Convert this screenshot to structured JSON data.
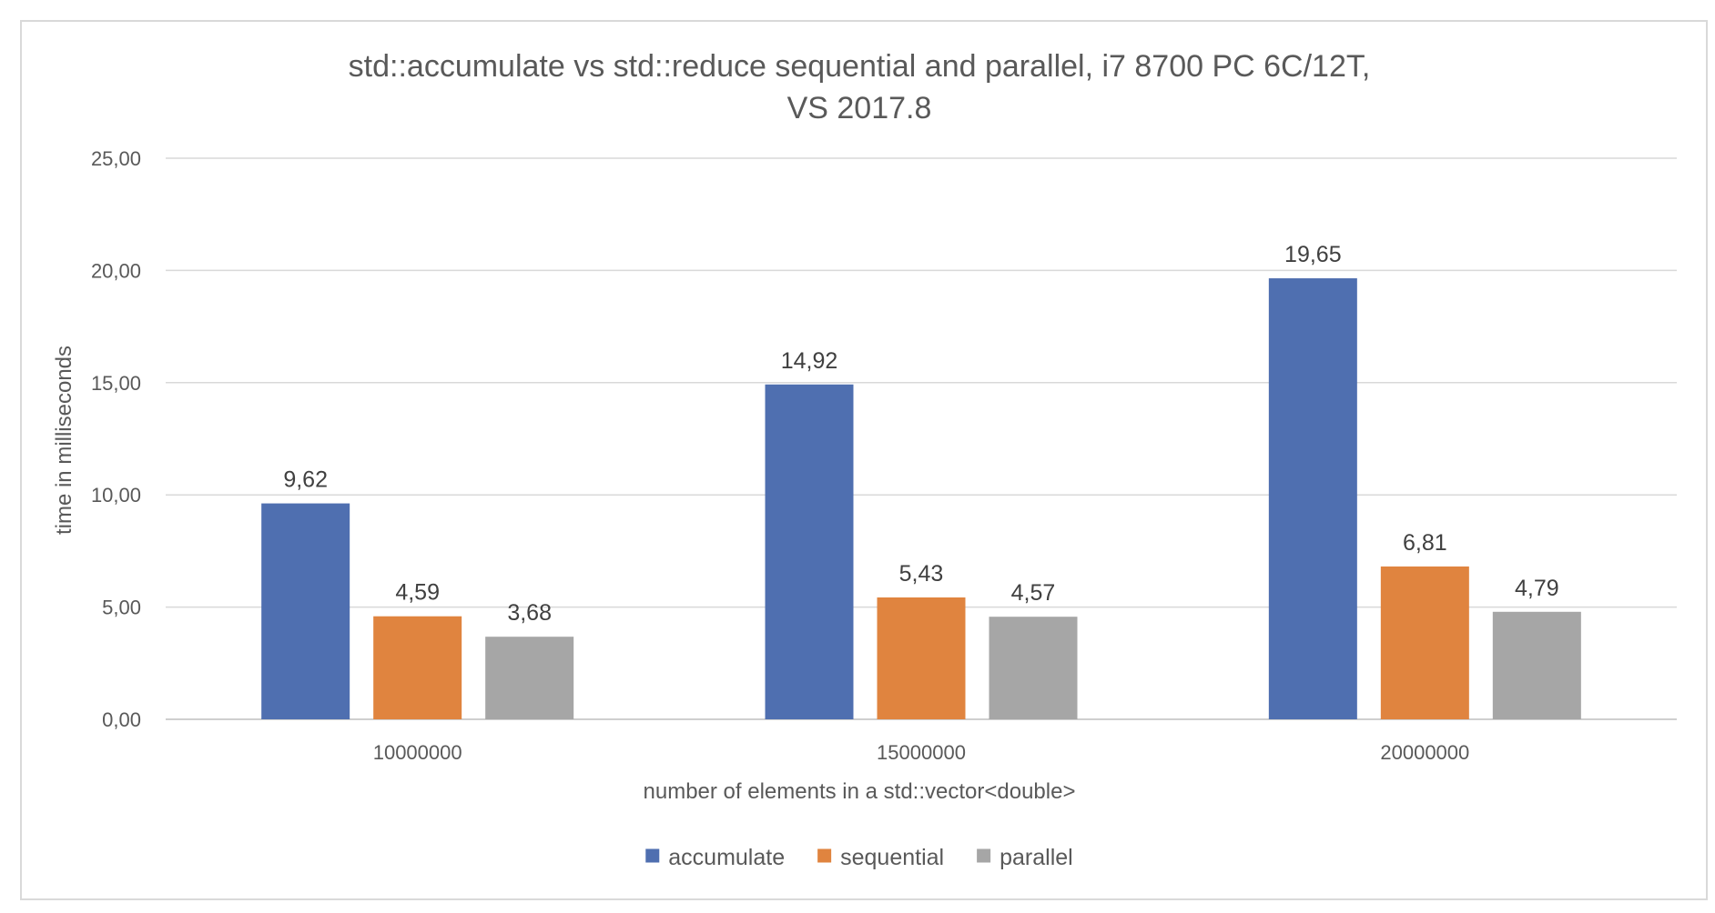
{
  "chart_data": {
    "type": "bar",
    "title_lines": [
      "std::accumulate vs std::reduce sequential and parallel, i7 8700 PC 6C/12T,",
      "VS 2017.8"
    ],
    "xlabel": "number of elements in a std::vector<double>",
    "ylabel": "time in milliseconds",
    "categories": [
      "10000000",
      "15000000",
      "20000000"
    ],
    "series": [
      {
        "name": "accumulate",
        "color": "#4f6fb0",
        "values": [
          9.62,
          14.92,
          19.65
        ],
        "labels": [
          "9,62",
          "14,92",
          "19,65"
        ]
      },
      {
        "name": "sequential",
        "color": "#e0843f",
        "values": [
          4.59,
          5.43,
          6.81
        ],
        "labels": [
          "4,59",
          "5,43",
          "6,81"
        ]
      },
      {
        "name": "parallel",
        "color": "#a6a6a6",
        "values": [
          3.68,
          4.57,
          4.79
        ],
        "labels": [
          "3,68",
          "4,57",
          "4,79"
        ]
      }
    ],
    "ylim": [
      0,
      25
    ],
    "yticks": [
      0,
      5,
      10,
      15,
      20,
      25
    ],
    "ytick_labels": [
      "0,00",
      "5,00",
      "10,00",
      "15,00",
      "20,00",
      "25,00"
    ],
    "grid": true,
    "legend_position": "bottom"
  }
}
